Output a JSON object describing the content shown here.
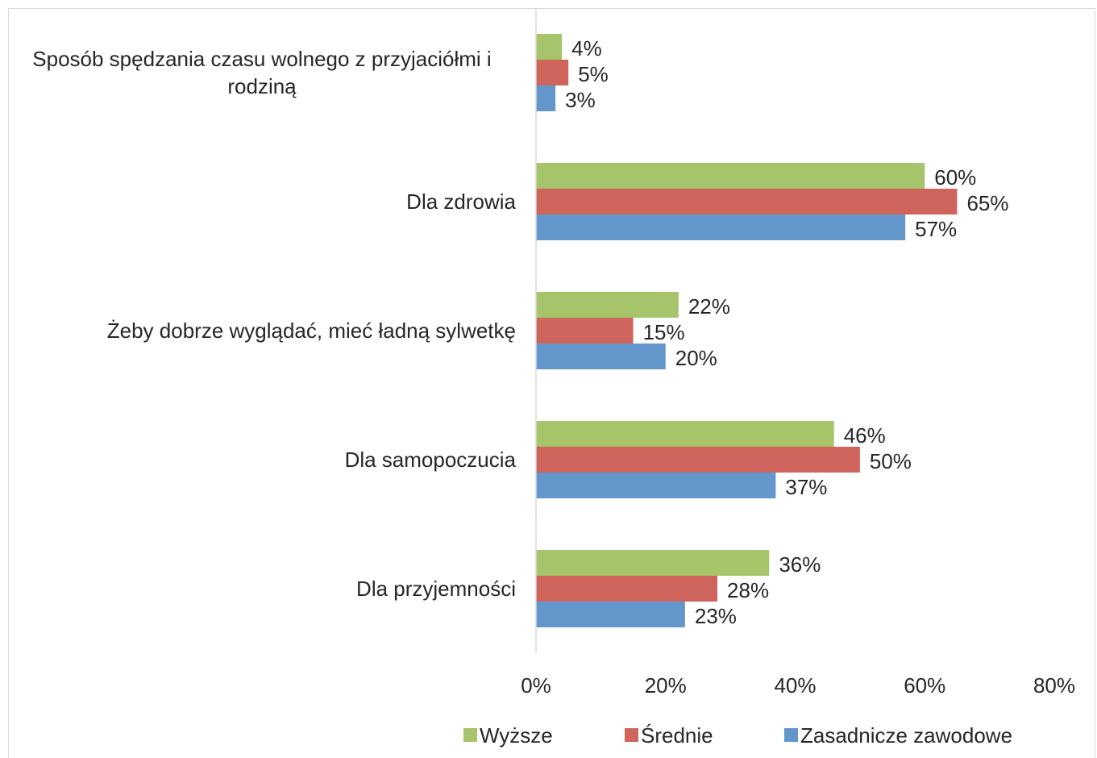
{
  "chart_data": {
    "type": "barh",
    "categories": [
      "Sposób spędzania czasu wolnego z przyjaciółmi i rodziną",
      "Dla zdrowia",
      "Żeby dobrze wyglądać, mieć ładną sylwetkę",
      "Dla samopoczucia",
      "Dla przyjemności"
    ],
    "series": [
      {
        "name": "Wyższe",
        "color": "#a6c46a",
        "values": [
          4,
          60,
          22,
          46,
          36
        ],
        "value_labels": [
          "4%",
          "60%",
          "22%",
          "46%",
          "36%"
        ]
      },
      {
        "name": "Średnie",
        "color": "#ce645c",
        "values": [
          5,
          65,
          15,
          50,
          28
        ],
        "value_labels": [
          "5%",
          "65%",
          "15%",
          "50%",
          "28%"
        ]
      },
      {
        "name": "Zasadnicze zawodowe",
        "color": "#6397cb",
        "values": [
          3,
          57,
          20,
          37,
          23
        ],
        "value_labels": [
          "3%",
          "57%",
          "20%",
          "37%",
          "23%"
        ]
      }
    ],
    "xlim": [
      0,
      80
    ],
    "xticks": [
      {
        "value": 0,
        "label": "0%"
      },
      {
        "value": 20,
        "label": "20%"
      },
      {
        "value": 40,
        "label": "40%"
      },
      {
        "value": 60,
        "label": "60%"
      },
      {
        "value": 80,
        "label": "80%"
      }
    ],
    "legend": "bottom"
  }
}
